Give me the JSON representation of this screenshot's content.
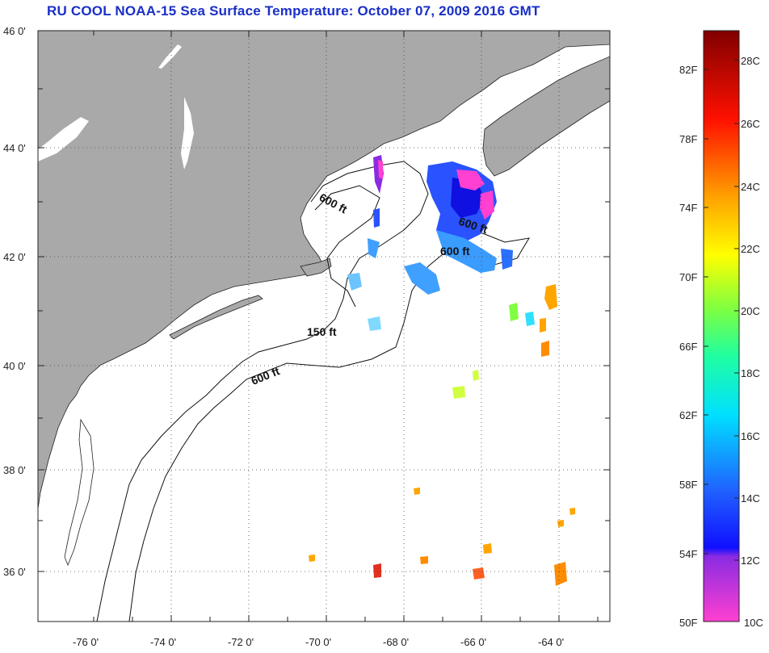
{
  "title": "RU COOL  NOAA-15  Sea Surface Temperature:  October 07, 2009 2016 GMT",
  "map": {
    "lon_range": [
      -77,
      -63
    ],
    "lat_range": [
      35,
      46
    ],
    "lat_ticks": [
      "46 0'",
      "44 0'",
      "42 0'",
      "40 0'",
      "38 0'",
      "36 0'"
    ],
    "lon_ticks": [
      "-76 0'",
      "-74 0'",
      "-72 0'",
      "-70 0'",
      "-68 0'",
      "-66 0'",
      "-64 0'"
    ],
    "contour_labels": [
      "600 ft",
      "600 ft",
      "600 ft",
      "150 ft",
      "600 ft"
    ],
    "colors": {
      "land": "#a9a9a9",
      "ocean": "#ffffff",
      "title": "#1a2fc8"
    }
  },
  "colorbar": {
    "f_labels": [
      "82F",
      "78F",
      "74F",
      "70F",
      "66F",
      "62F",
      "58F",
      "54F",
      "50F"
    ],
    "c_labels": [
      "28C",
      "26C",
      "24C",
      "22C",
      "20C",
      "18C",
      "16C",
      "14C",
      "12C",
      "10C"
    ]
  }
}
